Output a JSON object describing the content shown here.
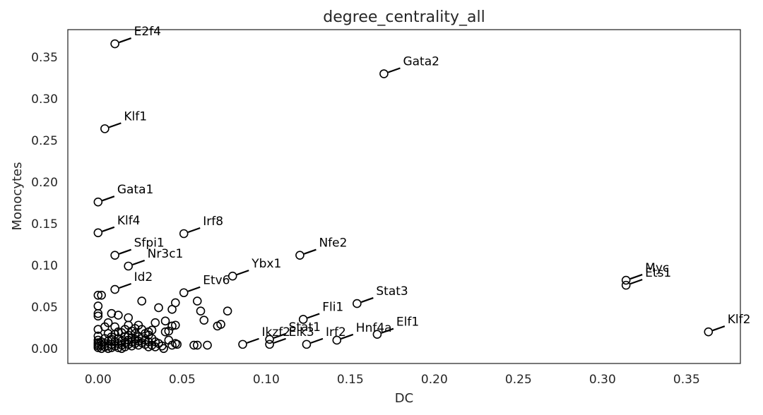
{
  "chart_data": {
    "type": "scatter",
    "title": "degree_centrality_all",
    "xlabel": "DC",
    "ylabel": "Monocytes",
    "xlim": [
      -0.018,
      0.382
    ],
    "ylim": [
      -0.018,
      0.383
    ],
    "xticks": [
      "0.00",
      "0.05",
      "0.10",
      "0.15",
      "0.20",
      "0.25",
      "0.30",
      "0.35"
    ],
    "yticks": [
      "0.00",
      "0.05",
      "0.10",
      "0.15",
      "0.20",
      "0.25",
      "0.30",
      "0.35"
    ],
    "grid": false,
    "marker": "hollow-circle",
    "labeled_points": [
      {
        "label": "E2f4",
        "x": 0.01,
        "y": 0.366
      },
      {
        "label": "Gata2",
        "x": 0.17,
        "y": 0.33
      },
      {
        "label": "Klf1",
        "x": 0.004,
        "y": 0.264
      },
      {
        "label": "Gata1",
        "x": 0.0,
        "y": 0.176
      },
      {
        "label": "Klf4",
        "x": 0.0,
        "y": 0.139
      },
      {
        "label": "Irf8",
        "x": 0.051,
        "y": 0.138
      },
      {
        "label": "Sfpi1",
        "x": 0.01,
        "y": 0.112
      },
      {
        "label": "Nfe2",
        "x": 0.12,
        "y": 0.112
      },
      {
        "label": "Nr3c1",
        "x": 0.018,
        "y": 0.099
      },
      {
        "label": "Ybx1",
        "x": 0.08,
        "y": 0.087
      },
      {
        "label": "Id2",
        "x": 0.01,
        "y": 0.071
      },
      {
        "label": "Etv6",
        "x": 0.051,
        "y": 0.067
      },
      {
        "label": "Myc",
        "x": 0.314,
        "y": 0.082
      },
      {
        "label": "Ets1",
        "x": 0.314,
        "y": 0.076
      },
      {
        "label": "Stat3",
        "x": 0.154,
        "y": 0.054
      },
      {
        "label": "Fli1",
        "x": 0.122,
        "y": 0.035
      },
      {
        "label": "Klf2",
        "x": 0.363,
        "y": 0.02
      },
      {
        "label": "Elf1",
        "x": 0.166,
        "y": 0.017
      },
      {
        "label": "Hnf4a",
        "x": 0.142,
        "y": 0.01
      },
      {
        "label": "Irf2",
        "x": 0.124,
        "y": 0.005
      },
      {
        "label": "Stat1",
        "x": 0.102,
        "y": 0.011
      },
      {
        "label": "Elk3",
        "x": 0.102,
        "y": 0.005
      },
      {
        "label": "Ikzf2",
        "x": 0.086,
        "y": 0.005
      }
    ],
    "other_points": [
      [
        0.0,
        0.064
      ],
      [
        0.002,
        0.064
      ],
      [
        0.0,
        0.051
      ],
      [
        0.0,
        0.042
      ],
      [
        0.0,
        0.039
      ],
      [
        0.008,
        0.042
      ],
      [
        0.012,
        0.04
      ],
      [
        0.026,
        0.057
      ],
      [
        0.036,
        0.049
      ],
      [
        0.044,
        0.047
      ],
      [
        0.046,
        0.055
      ],
      [
        0.059,
        0.057
      ],
      [
        0.061,
        0.045
      ],
      [
        0.063,
        0.034
      ],
      [
        0.071,
        0.027
      ],
      [
        0.073,
        0.029
      ],
      [
        0.077,
        0.045
      ],
      [
        0.0,
        0.023
      ],
      [
        0.004,
        0.026
      ],
      [
        0.006,
        0.031
      ],
      [
        0.0,
        0.015
      ],
      [
        0.01,
        0.026
      ],
      [
        0.012,
        0.02
      ],
      [
        0.016,
        0.023
      ],
      [
        0.018,
        0.028
      ],
      [
        0.02,
        0.021
      ],
      [
        0.022,
        0.018
      ],
      [
        0.024,
        0.028
      ],
      [
        0.026,
        0.023
      ],
      [
        0.028,
        0.018
      ],
      [
        0.03,
        0.02
      ],
      [
        0.032,
        0.022
      ],
      [
        0.034,
        0.031
      ],
      [
        0.04,
        0.02
      ],
      [
        0.042,
        0.021
      ],
      [
        0.044,
        0.027
      ],
      [
        0.046,
        0.028
      ],
      [
        0.04,
        0.033
      ],
      [
        0.018,
        0.037
      ],
      [
        0.0,
        0.01
      ],
      [
        0.0,
        0.007
      ],
      [
        0.0,
        0.005
      ],
      [
        0.0,
        0.003
      ],
      [
        0.0,
        0.001
      ],
      [
        0.002,
        0.008
      ],
      [
        0.002,
        0.004
      ],
      [
        0.002,
        0.0
      ],
      [
        0.004,
        0.012
      ],
      [
        0.004,
        0.006
      ],
      [
        0.004,
        0.002
      ],
      [
        0.006,
        0.009
      ],
      [
        0.006,
        0.003
      ],
      [
        0.006,
        0.0
      ],
      [
        0.008,
        0.011
      ],
      [
        0.008,
        0.005
      ],
      [
        0.008,
        0.001
      ],
      [
        0.01,
        0.008
      ],
      [
        0.01,
        0.003
      ],
      [
        0.012,
        0.012
      ],
      [
        0.012,
        0.006
      ],
      [
        0.012,
        0.001
      ],
      [
        0.014,
        0.009
      ],
      [
        0.014,
        0.004
      ],
      [
        0.014,
        0.0
      ],
      [
        0.016,
        0.014
      ],
      [
        0.016,
        0.007
      ],
      [
        0.016,
        0.002
      ],
      [
        0.018,
        0.01
      ],
      [
        0.018,
        0.005
      ],
      [
        0.02,
        0.013
      ],
      [
        0.02,
        0.008
      ],
      [
        0.02,
        0.003
      ],
      [
        0.022,
        0.011
      ],
      [
        0.022,
        0.006
      ],
      [
        0.024,
        0.014
      ],
      [
        0.024,
        0.009
      ],
      [
        0.024,
        0.004
      ],
      [
        0.026,
        0.012
      ],
      [
        0.026,
        0.007
      ],
      [
        0.028,
        0.01
      ],
      [
        0.028,
        0.005
      ],
      [
        0.03,
        0.016
      ],
      [
        0.03,
        0.008
      ],
      [
        0.03,
        0.002
      ],
      [
        0.032,
        0.012
      ],
      [
        0.032,
        0.004
      ],
      [
        0.034,
        0.008
      ],
      [
        0.034,
        0.002
      ],
      [
        0.036,
        0.006
      ],
      [
        0.038,
        0.003
      ],
      [
        0.039,
        0.0
      ],
      [
        0.042,
        0.01
      ],
      [
        0.044,
        0.004
      ],
      [
        0.046,
        0.006
      ],
      [
        0.047,
        0.005
      ],
      [
        0.057,
        0.004
      ],
      [
        0.059,
        0.004
      ],
      [
        0.065,
        0.004
      ],
      [
        0.01,
        0.017
      ],
      [
        0.014,
        0.019
      ],
      [
        0.018,
        0.016
      ],
      [
        0.022,
        0.024
      ],
      [
        0.008,
        0.014
      ],
      [
        0.006,
        0.018
      ]
    ]
  }
}
